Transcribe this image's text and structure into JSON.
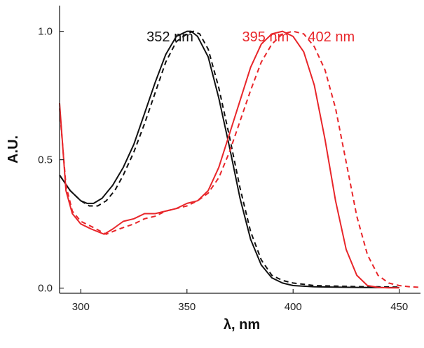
{
  "chart_data": {
    "type": "line",
    "title": "",
    "xlabel": "λ, nm",
    "ylabel": "A.U.",
    "xlim": [
      290,
      460
    ],
    "ylim": [
      -0.02,
      1.1
    ],
    "x_ticks": [
      300,
      350,
      400,
      450
    ],
    "x_tick_labels": [
      "300",
      "350",
      "400",
      "450"
    ],
    "y_ticks": [
      0.0,
      0.5,
      1.0
    ],
    "y_tick_labels": [
      "0.0",
      "0.5",
      "1.0"
    ],
    "grid": false,
    "legend": "none",
    "annotations": [
      {
        "text": "352 nm",
        "x": 342,
        "y": 0.98,
        "color": "#111111"
      },
      {
        "text": "395 nm",
        "x": 387,
        "y": 0.98,
        "color": "#e8262a"
      },
      {
        "text": "402 nm",
        "x": 418,
        "y": 0.98,
        "color": "#e8262a"
      }
    ],
    "series": [
      {
        "name": "black-solid",
        "color": "#111111",
        "dash": "solid",
        "x": [
          290,
          295,
          300,
          303,
          306,
          310,
          315,
          320,
          325,
          330,
          335,
          340,
          345,
          350,
          352,
          355,
          360,
          365,
          370,
          375,
          380,
          385,
          390,
          395,
          400,
          410,
          420,
          430,
          440,
          450
        ],
        "y": [
          0.44,
          0.38,
          0.34,
          0.33,
          0.33,
          0.35,
          0.4,
          0.47,
          0.56,
          0.68,
          0.8,
          0.91,
          0.98,
          1.0,
          1.0,
          0.98,
          0.9,
          0.74,
          0.55,
          0.35,
          0.19,
          0.09,
          0.04,
          0.02,
          0.01,
          0.005,
          0.004,
          0.003,
          0.002,
          0.002
        ]
      },
      {
        "name": "black-dashed",
        "color": "#111111",
        "dash": "dashed",
        "x": [
          290,
          295,
          300,
          304,
          308,
          312,
          316,
          320,
          325,
          330,
          335,
          340,
          345,
          350,
          353,
          356,
          360,
          365,
          370,
          375,
          380,
          385,
          390,
          395,
          400,
          410,
          420,
          430,
          440,
          450
        ],
        "y": [
          0.44,
          0.38,
          0.34,
          0.32,
          0.32,
          0.34,
          0.38,
          0.44,
          0.53,
          0.64,
          0.76,
          0.88,
          0.96,
          0.99,
          1.0,
          0.99,
          0.93,
          0.78,
          0.59,
          0.39,
          0.22,
          0.11,
          0.05,
          0.03,
          0.02,
          0.01,
          0.008,
          0.006,
          0.005,
          0.004
        ]
      },
      {
        "name": "red-solid",
        "color": "#e8262a",
        "dash": "solid",
        "x": [
          290,
          293,
          296,
          300,
          305,
          311,
          315,
          320,
          325,
          330,
          335,
          340,
          345,
          350,
          355,
          360,
          365,
          370,
          375,
          380,
          385,
          390,
          395,
          400,
          405,
          410,
          415,
          420,
          425,
          430,
          435,
          440,
          445,
          450
        ],
        "y": [
          0.72,
          0.38,
          0.29,
          0.25,
          0.23,
          0.21,
          0.23,
          0.26,
          0.27,
          0.29,
          0.29,
          0.3,
          0.31,
          0.33,
          0.34,
          0.38,
          0.47,
          0.6,
          0.73,
          0.86,
          0.95,
          0.99,
          1.0,
          0.98,
          0.92,
          0.79,
          0.58,
          0.34,
          0.15,
          0.05,
          0.01,
          0.003,
          0.001,
          0.001
        ]
      },
      {
        "name": "red-dashed",
        "color": "#e8262a",
        "dash": "dashed",
        "x": [
          290,
          293,
          296,
          300,
          305,
          312,
          318,
          325,
          330,
          335,
          340,
          345,
          350,
          355,
          360,
          365,
          370,
          375,
          380,
          385,
          390,
          395,
          400,
          405,
          410,
          415,
          420,
          425,
          430,
          435,
          440,
          445,
          450,
          455,
          460
        ],
        "y": [
          0.7,
          0.4,
          0.3,
          0.26,
          0.24,
          0.21,
          0.23,
          0.25,
          0.27,
          0.28,
          0.3,
          0.31,
          0.32,
          0.34,
          0.37,
          0.43,
          0.53,
          0.65,
          0.77,
          0.88,
          0.95,
          0.99,
          1.0,
          0.99,
          0.94,
          0.85,
          0.7,
          0.49,
          0.28,
          0.13,
          0.05,
          0.02,
          0.01,
          0.005,
          0.003
        ]
      }
    ]
  }
}
